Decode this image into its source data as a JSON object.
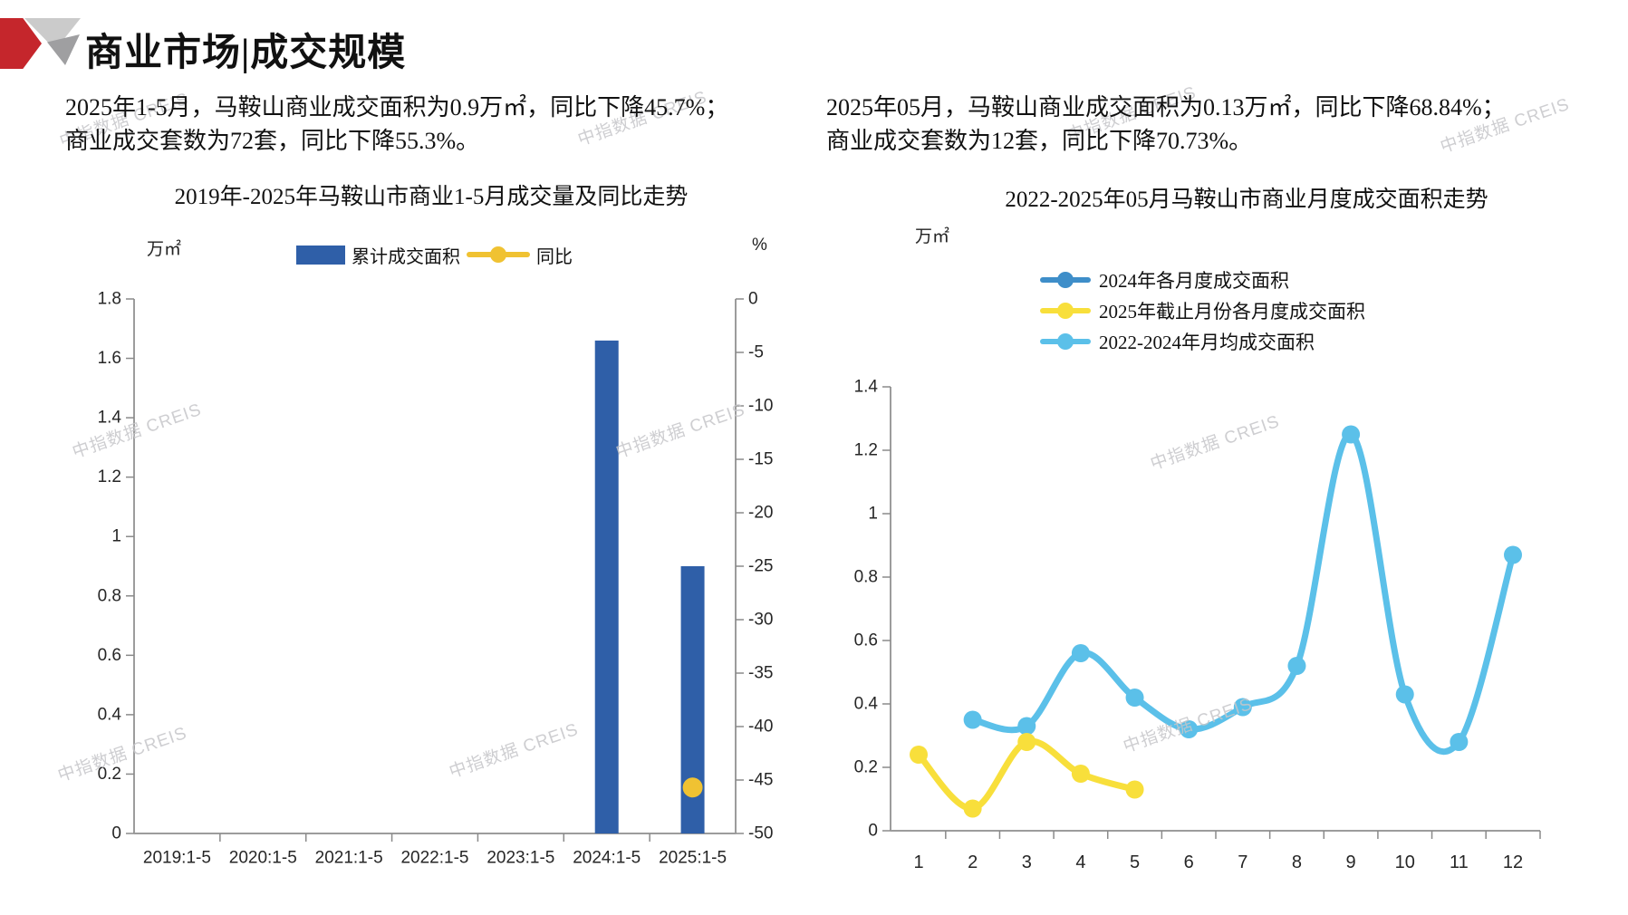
{
  "header": {
    "title": "商业市场|成交规模"
  },
  "watermark": {
    "text": "中指数据 CREIS"
  },
  "summaries": {
    "left": [
      "2025年1-5月，马鞍山商业成交面积为0.9万㎡，同比下降45.7%；",
      "商业成交套数为72套，同比下降55.3%。"
    ],
    "right": [
      "2025年05月，马鞍山商业成交面积为0.13万㎡，同比下降68.84%；",
      "商业成交套数为12套，同比下降70.73%。"
    ]
  },
  "chart_data": [
    {
      "type": "bar",
      "title": "2019年-2025年马鞍山市商业1-5月成交量及同比走势",
      "categories": [
        "2019:1-5",
        "2020:1-5",
        "2021:1-5",
        "2022:1-5",
        "2023:1-5",
        "2024:1-5",
        "2025:1-5"
      ],
      "series": [
        {
          "name": "累计成交面积",
          "type": "bar",
          "axis": "left",
          "color": "#2F5FA8",
          "values": [
            null,
            null,
            null,
            null,
            null,
            1.66,
            0.9
          ]
        },
        {
          "name": "同比",
          "type": "line",
          "axis": "right",
          "color": "#F0C232",
          "values": [
            null,
            null,
            null,
            null,
            null,
            null,
            -45.7
          ]
        }
      ],
      "ylabel_left": "万㎡",
      "ylabel_right": "%",
      "ylim_left": [
        0,
        1.8
      ],
      "ytick_step_left": 0.2,
      "ylim_right": [
        -50,
        0
      ],
      "ytick_step_right": 5,
      "grid": false,
      "legend_position": "top"
    },
    {
      "type": "line",
      "title": "2022-2025年05月马鞍山市商业月度成交面积走势",
      "x": [
        1,
        2,
        3,
        4,
        5,
        6,
        7,
        8,
        9,
        10,
        11,
        12
      ],
      "series": [
        {
          "name": "2024年各月度成交面积",
          "color": "#3E8EC9",
          "values": [
            null,
            null,
            null,
            null,
            null,
            null,
            null,
            null,
            null,
            null,
            null,
            null
          ]
        },
        {
          "name": "2025年截止月份各月度成交面积",
          "color": "#F8DF3B",
          "values": [
            0.24,
            0.07,
            0.28,
            0.18,
            0.13,
            null,
            null,
            null,
            null,
            null,
            null,
            null
          ]
        },
        {
          "name": "2022-2024年月均成交面积",
          "color": "#5BC0E9",
          "values": [
            null,
            0.35,
            0.33,
            0.56,
            0.42,
            0.32,
            0.39,
            0.52,
            1.25,
            0.43,
            0.28,
            0.87
          ]
        }
      ],
      "ylabel": "万㎡",
      "ylim": [
        0,
        1.4
      ],
      "ytick_step": 0.2,
      "grid": false,
      "smooth": true,
      "legend_position": "top"
    }
  ]
}
